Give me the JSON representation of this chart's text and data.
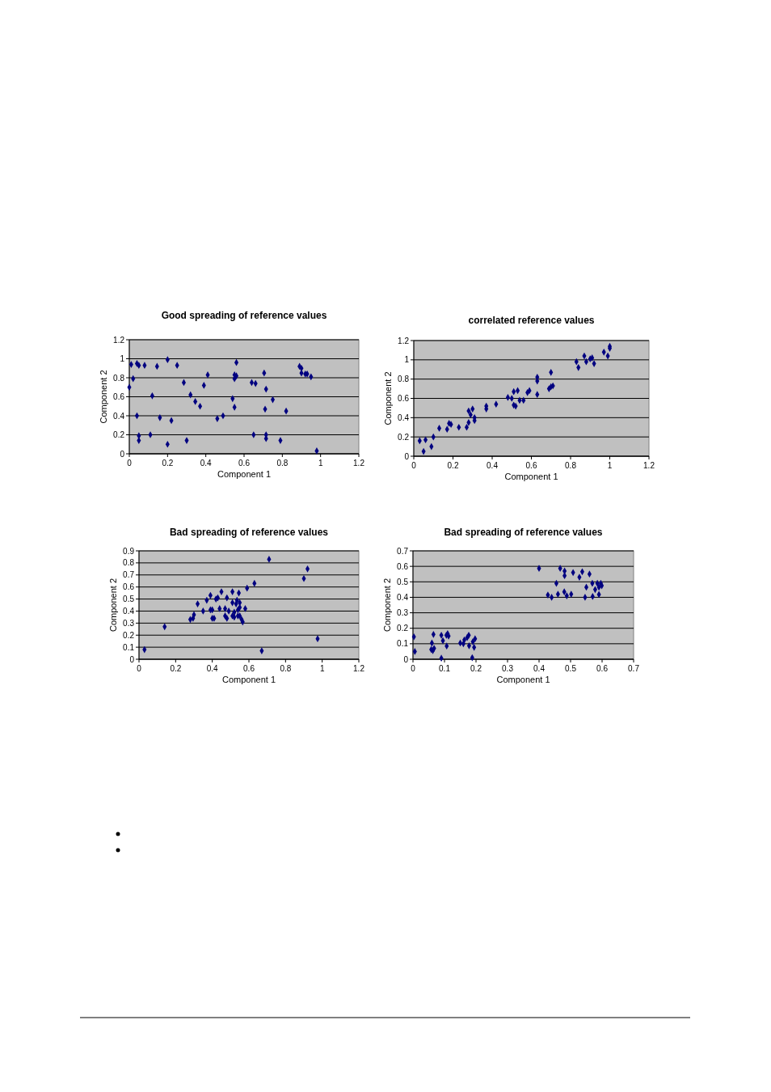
{
  "chart_data": [
    {
      "type": "scatter",
      "title": "Good spreading of reference values",
      "xlabel": "Component 1",
      "ylabel": "Component 2",
      "xlim": [
        0,
        1.2
      ],
      "ylim": [
        0,
        1.2
      ],
      "xticks": [
        0,
        0.2,
        0.4,
        0.6,
        0.8,
        1,
        1.2
      ],
      "yticks": [
        0,
        0.2,
        0.4,
        0.6,
        0.8,
        1,
        1.2
      ],
      "grid": "y",
      "marker": "diamond",
      "series": [
        {
          "color": "#000080",
          "x": [
            0,
            0.01,
            0.02,
            0.04,
            0.05,
            0.08,
            0.04,
            0.05,
            0.05,
            0.11,
            0.12,
            0.145,
            0.16,
            0.2,
            0.2,
            0.22,
            0.25,
            0.285,
            0.3,
            0.32,
            0.345,
            0.37,
            0.39,
            0.41,
            0.46,
            0.49,
            0.56,
            0.55,
            0.55,
            0.56,
            0.54,
            0.55,
            0.65,
            0.64,
            0.66,
            0.705,
            0.71,
            0.715,
            0.715,
            0.715,
            0.75,
            0.79,
            0.82,
            0.89,
            0.9,
            0.9,
            0.92,
            0.93,
            0.95,
            0.98
          ],
          "values": [
            0.7,
            0.94,
            0.79,
            0.95,
            0.93,
            0.93,
            0.4,
            0.19,
            0.14,
            0.2,
            0.61,
            0.92,
            0.38,
            0.99,
            0.1,
            0.35,
            0.93,
            0.75,
            0.14,
            0.62,
            0.55,
            0.5,
            0.72,
            0.83,
            0.37,
            0.4,
            0.96,
            0.83,
            0.79,
            0.82,
            0.58,
            0.49,
            0.2,
            0.75,
            0.74,
            0.85,
            0.47,
            0.68,
            0.2,
            0.16,
            0.57,
            0.14,
            0.45,
            0.92,
            0.9,
            0.85,
            0.84,
            0.84,
            0.81,
            0.03
          ]
        }
      ]
    },
    {
      "type": "scatter",
      "title": "correlated reference values",
      "xlabel": "Component 1",
      "ylabel": "Component 2",
      "xlim": [
        0,
        1.2
      ],
      "ylim": [
        0,
        1.2
      ],
      "xticks": [
        0,
        0.2,
        0.4,
        0.6,
        0.8,
        1,
        1.2
      ],
      "yticks": [
        0,
        0.2,
        0.4,
        0.6,
        0.8,
        1,
        1.2
      ],
      "grid": "y",
      "marker": "diamond",
      "series": [
        {
          "color": "#000080",
          "x": [
            0.03,
            0.05,
            0.06,
            0.09,
            0.1,
            0.13,
            0.17,
            0.18,
            0.19,
            0.23,
            0.27,
            0.28,
            0.28,
            0.29,
            0.3,
            0.31,
            0.31,
            0.37,
            0.37,
            0.42,
            0.48,
            0.5,
            0.51,
            0.51,
            0.52,
            0.53,
            0.54,
            0.56,
            0.58,
            0.59,
            0.63,
            0.63,
            0.63,
            0.7,
            0.69,
            0.7,
            0.71,
            0.83,
            0.84,
            0.87,
            0.88,
            0.9,
            0.91,
            0.92,
            0.97,
            0.99,
            1,
            1
          ],
          "values": [
            0.16,
            0.05,
            0.17,
            0.1,
            0.2,
            0.29,
            0.28,
            0.34,
            0.33,
            0.3,
            0.3,
            0.47,
            0.35,
            0.43,
            0.49,
            0.4,
            0.37,
            0.49,
            0.52,
            0.54,
            0.61,
            0.6,
            0.67,
            0.53,
            0.52,
            0.68,
            0.58,
            0.58,
            0.66,
            0.68,
            0.64,
            0.78,
            0.82,
            0.87,
            0.7,
            0.72,
            0.73,
            0.98,
            0.92,
            1.04,
            0.98,
            1.01,
            1.02,
            0.96,
            1.08,
            1.04,
            1.12,
            1.14
          ]
        }
      ]
    },
    {
      "type": "scatter",
      "title": "Bad spreading of reference values",
      "xlabel": "Component 1",
      "ylabel": "Component 2",
      "xlim": [
        0,
        1.2
      ],
      "ylim": [
        0,
        0.9
      ],
      "xticks": [
        0,
        0.2,
        0.4,
        0.6,
        0.8,
        1,
        1.2
      ],
      "yticks": [
        0,
        0.1,
        0.2,
        0.3,
        0.4,
        0.5,
        0.6,
        0.7,
        0.8,
        0.9
      ],
      "grid": "y",
      "marker": "diamond",
      "series": [
        {
          "color": "#000080",
          "x": [
            0.03,
            0.14,
            0.32,
            0.3,
            0.295,
            0.28,
            0.35,
            0.37,
            0.39,
            0.39,
            0.4,
            0.4,
            0.41,
            0.42,
            0.43,
            0.44,
            0.45,
            0.47,
            0.47,
            0.48,
            0.48,
            0.49,
            0.51,
            0.51,
            0.51,
            0.52,
            0.52,
            0.53,
            0.535,
            0.54,
            0.545,
            0.55,
            0.55,
            0.54,
            0.55,
            0.56,
            0.566,
            0.58,
            0.59,
            0.63,
            0.67,
            0.71,
            0.9,
            0.92,
            0.975
          ],
          "values": [
            0.08,
            0.27,
            0.46,
            0.37,
            0.34,
            0.33,
            0.4,
            0.49,
            0.53,
            0.41,
            0.41,
            0.34,
            0.34,
            0.5,
            0.51,
            0.42,
            0.56,
            0.36,
            0.42,
            0.34,
            0.51,
            0.4,
            0.47,
            0.56,
            0.36,
            0.39,
            0.35,
            0.46,
            0.49,
            0.41,
            0.55,
            0.47,
            0.36,
            0.36,
            0.43,
            0.33,
            0.31,
            0.42,
            0.59,
            0.63,
            0.07,
            0.83,
            0.67,
            0.75,
            0.17
          ]
        }
      ]
    },
    {
      "type": "scatter",
      "title": "Bad spreading of reference values",
      "xlabel": "Component 1",
      "ylabel": "Component 2",
      "xlim": [
        0,
        0.7
      ],
      "ylim": [
        0,
        0.7
      ],
      "xticks": [
        0,
        0.1,
        0.2,
        0.3,
        0.4,
        0.5,
        0.6,
        0.7
      ],
      "yticks": [
        0,
        0.1,
        0.2,
        0.3,
        0.4,
        0.5,
        0.6,
        0.7
      ],
      "grid": "y",
      "marker": "diamond",
      "series": [
        {
          "color": "#000080",
          "x": [
            0.003,
            0.006,
            0.065,
            0.06,
            0.058,
            0.063,
            0.067,
            0.09,
            0.095,
            0.09,
            0.107,
            0.106,
            0.11,
            0.113,
            0.15,
            0.16,
            0.163,
            0.172,
            0.177,
            0.178,
            0.188,
            0.19,
            0.194,
            0.197,
            0.4,
            0.428,
            0.44,
            0.455,
            0.46,
            0.467,
            0.481,
            0.481,
            0.48,
            0.488,
            0.502,
            0.508,
            0.528,
            0.537,
            0.56,
            0.546,
            0.55,
            0.569,
            0.57,
            0.578,
            0.585,
            0.59,
            0.59,
            0.596,
            0.599
          ],
          "values": [
            0.145,
            0.05,
            0.16,
            0.105,
            0.063,
            0.056,
            0.07,
            0.155,
            0.12,
            0.007,
            0.085,
            0.155,
            0.165,
            0.15,
            0.105,
            0.1,
            0.125,
            0.14,
            0.155,
            0.087,
            0.01,
            0.113,
            0.077,
            0.132,
            0.587,
            0.415,
            0.4,
            0.49,
            0.42,
            0.587,
            0.57,
            0.54,
            0.435,
            0.41,
            0.42,
            0.56,
            0.53,
            0.565,
            0.55,
            0.4,
            0.465,
            0.49,
            0.405,
            0.45,
            0.49,
            0.418,
            0.465,
            0.49,
            0.475
          ]
        }
      ]
    }
  ]
}
